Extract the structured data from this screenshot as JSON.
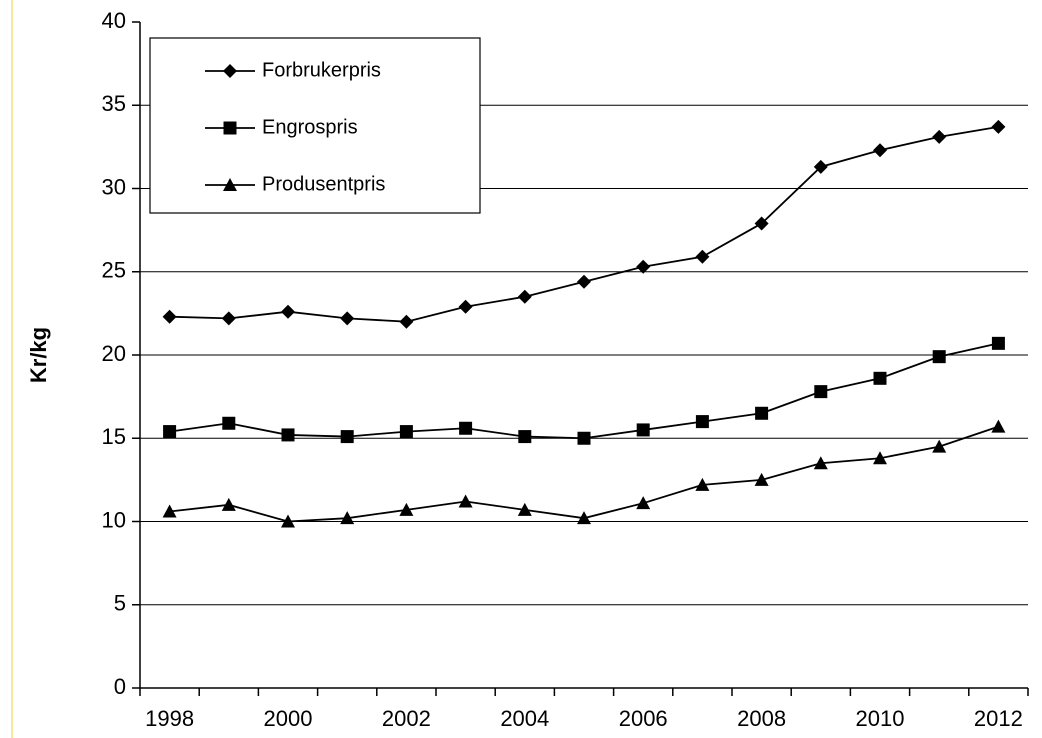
{
  "chart_data": {
    "type": "line",
    "y_label": "Kr/kg",
    "categories": [
      "1998",
      null,
      "2000",
      null,
      "2002",
      null,
      "2004",
      null,
      "2006",
      null,
      "2008",
      null,
      "2010",
      null,
      "2012"
    ],
    "series": [
      {
        "name": "Forbrukerpris",
        "color": "#000000",
        "marker": "diamond",
        "values": [
          22.3,
          22.2,
          22.6,
          22.2,
          22.0,
          22.9,
          23.5,
          24.4,
          25.3,
          25.9,
          27.9,
          31.3,
          32.3,
          33.1,
          33.7
        ]
      },
      {
        "name": "Engrospris",
        "color": "#000000",
        "marker": "square",
        "values": [
          15.4,
          15.9,
          15.2,
          15.1,
          15.4,
          15.6,
          15.1,
          15.0,
          15.5,
          16.0,
          16.5,
          17.8,
          18.6,
          19.9,
          20.7
        ]
      },
      {
        "name": "Produsentpris",
        "color": "#000000",
        "marker": "triangle",
        "values": [
          10.6,
          11.0,
          10.0,
          10.2,
          10.7,
          11.2,
          10.7,
          10.2,
          11.1,
          12.2,
          12.5,
          13.5,
          13.8,
          14.5,
          15.7
        ]
      }
    ],
    "ylim": [
      0,
      40
    ],
    "yticks": [
      0,
      5,
      10,
      15,
      20,
      25,
      30,
      35,
      40
    ],
    "grid": true,
    "legend": "upper left"
  }
}
